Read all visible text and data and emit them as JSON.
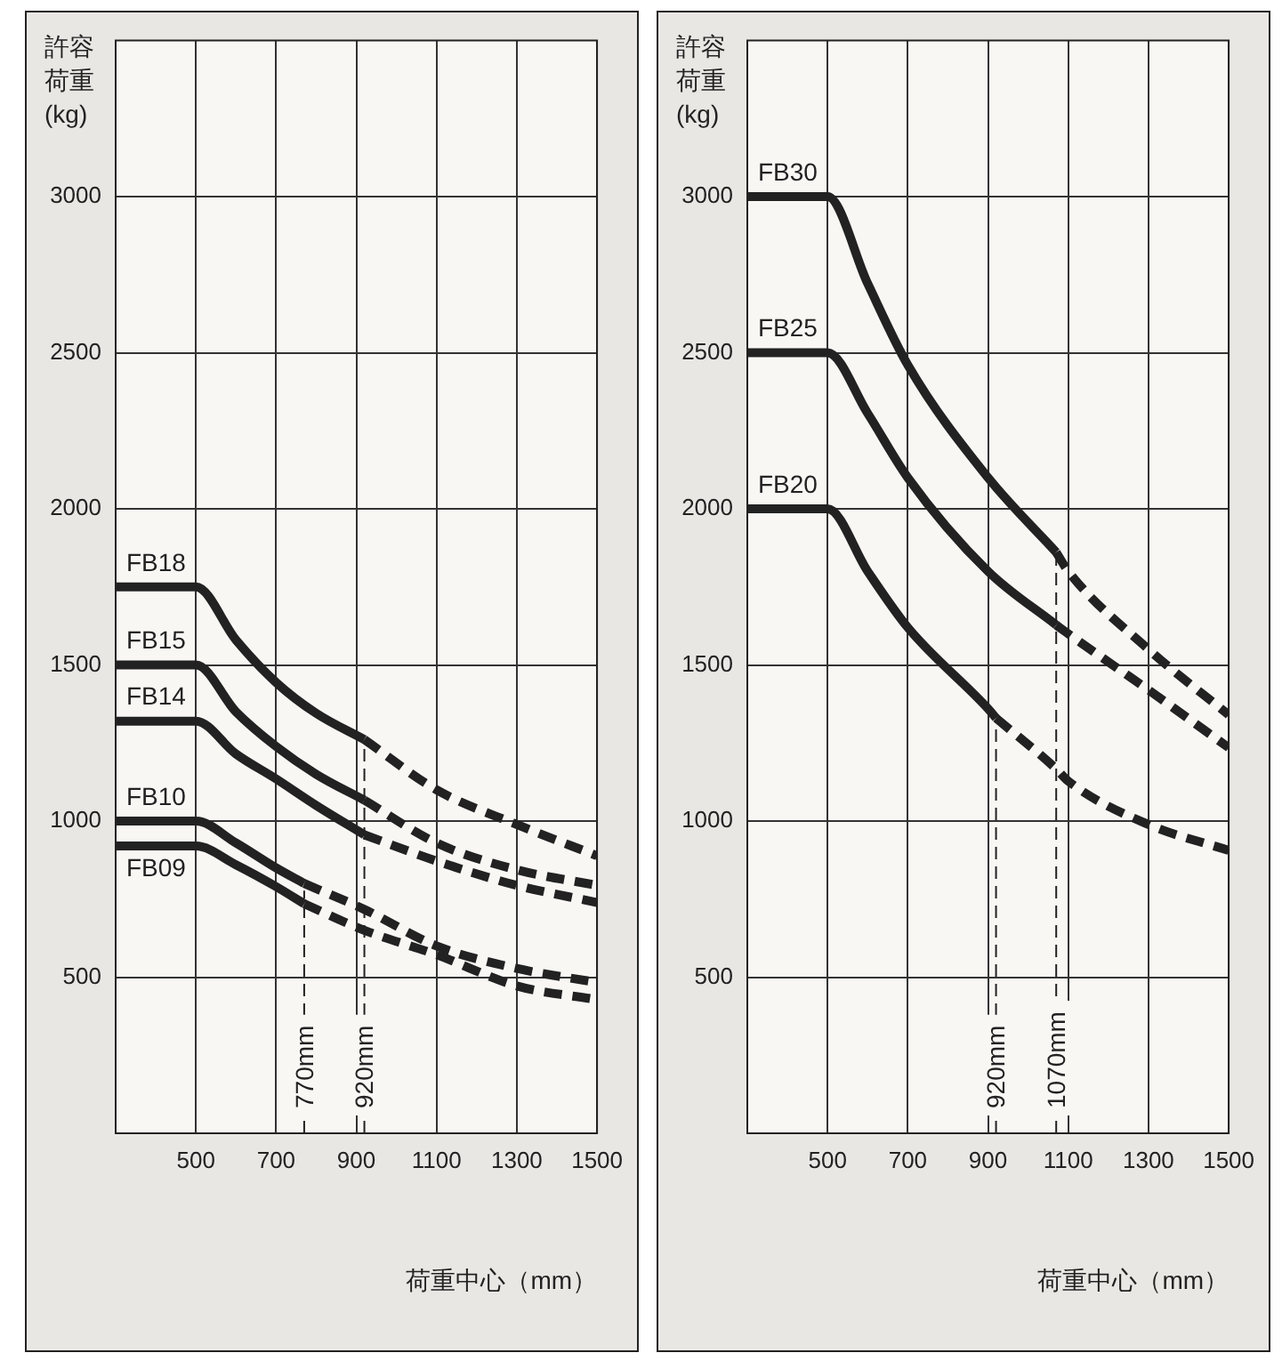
{
  "chart_data": [
    {
      "type": "line",
      "ylabel": "許容荷重(kg)",
      "xlabel": "荷重中心（mm）",
      "xlim": [
        300,
        1500
      ],
      "xticks": [
        500,
        700,
        900,
        1100,
        1300,
        1500
      ],
      "ylim": [
        0,
        3500
      ],
      "yticks": [
        500,
        1000,
        1500,
        2000,
        2500,
        3000
      ],
      "grid": true,
      "marker": "none",
      "line_style": "solid",
      "series": [
        {
          "name": "FB18",
          "color": "#222222",
          "x": [
            300,
            500,
            600,
            700,
            800,
            920
          ],
          "values": [
            1750,
            1750,
            1580,
            1444,
            1345,
            1261
          ]
        },
        {
          "color": "#222222",
          "line_style": "dashed",
          "x": [
            920,
            1100,
            1300,
            1500
          ],
          "values": [
            1261,
            1100,
            989,
            889
          ]
        },
        {
          "name": "FB15",
          "color": "#222222",
          "x": [
            300,
            500,
            600,
            700,
            800,
            920
          ],
          "values": [
            1500,
            1500,
            1350,
            1239,
            1150,
            1067
          ]
        },
        {
          "color": "#222222",
          "line_style": "dashed",
          "x": [
            920,
            1100,
            1300,
            1500
          ],
          "values": [
            1067,
            930,
            844,
            794
          ]
        },
        {
          "name": "FB14",
          "color": "#222222",
          "x": [
            300,
            500,
            600,
            700,
            800,
            920
          ],
          "values": [
            1320,
            1320,
            1215,
            1135,
            1050,
            956
          ]
        },
        {
          "color": "#222222",
          "line_style": "dashed",
          "x": [
            920,
            1100,
            1300,
            1500
          ],
          "values": [
            956,
            872,
            794,
            739
          ]
        },
        {
          "name": "FB10",
          "color": "#222222",
          "x": [
            300,
            500,
            600,
            700,
            770
          ],
          "values": [
            1000,
            1000,
            930,
            850,
            800
          ]
        },
        {
          "color": "#222222",
          "line_style": "dashed",
          "x": [
            770,
            920,
            1100,
            1300,
            1500
          ],
          "values": [
            800,
            717,
            600,
            528,
            483
          ]
        },
        {
          "name": "FB09",
          "color": "#222222",
          "x": [
            300,
            500,
            600,
            700,
            770
          ],
          "values": [
            920,
            920,
            860,
            790,
            735
          ]
        },
        {
          "color": "#222222",
          "line_style": "dashed",
          "x": [
            770,
            920,
            1100,
            1300,
            1500
          ],
          "values": [
            735,
            650,
            572,
            472,
            428
          ]
        }
      ],
      "ref_lines": [
        {
          "axis": "x",
          "value": 770,
          "label": "770mm",
          "line_style": "dashed"
        },
        {
          "axis": "x",
          "value": 920,
          "label": "920mm",
          "line_style": "dashed"
        }
      ]
    },
    {
      "type": "line",
      "ylabel": "許容荷重(kg)",
      "xlabel": "荷重中心（mm）",
      "xlim": [
        300,
        1500
      ],
      "xticks": [
        500,
        700,
        900,
        1100,
        1300,
        1500
      ],
      "ylim": [
        0,
        3500
      ],
      "yticks": [
        500,
        1000,
        1500,
        2000,
        2500,
        3000
      ],
      "grid": true,
      "marker": "none",
      "line_style": "solid",
      "series": [
        {
          "name": "FB30",
          "color": "#222222",
          "x": [
            300,
            500,
            600,
            700,
            900,
            1070
          ],
          "values": [
            3000,
            3000,
            2722,
            2461,
            2100,
            1861
          ]
        },
        {
          "color": "#222222",
          "line_style": "dashed",
          "x": [
            1070,
            1100,
            1300,
            1500
          ],
          "values": [
            1861,
            1800,
            1550,
            1340
          ]
        },
        {
          "name": "FB25",
          "color": "#222222",
          "x": [
            300,
            500,
            600,
            700,
            900,
            1070
          ],
          "values": [
            2500,
            2500,
            2306,
            2100,
            1800,
            1628
          ]
        },
        {
          "color": "#222222",
          "line_style": "dashed",
          "x": [
            1070,
            1100,
            1300,
            1500
          ],
          "values": [
            1628,
            1600,
            1420,
            1235
          ]
        },
        {
          "name": "FB20",
          "color": "#222222",
          "x": [
            300,
            500,
            600,
            700,
            900,
            920
          ],
          "values": [
            2000,
            2000,
            1800,
            1620,
            1360,
            1330
          ]
        },
        {
          "color": "#222222",
          "line_style": "dashed",
          "x": [
            920,
            1070,
            1100,
            1300,
            1500
          ],
          "values": [
            1330,
            1167,
            1128,
            989,
            906
          ]
        }
      ],
      "ref_lines": [
        {
          "axis": "x",
          "value": 920,
          "label": "920mm",
          "line_style": "dashed"
        },
        {
          "axis": "x",
          "value": 1070,
          "label": "1070mm",
          "line_style": "dashed"
        }
      ]
    }
  ]
}
